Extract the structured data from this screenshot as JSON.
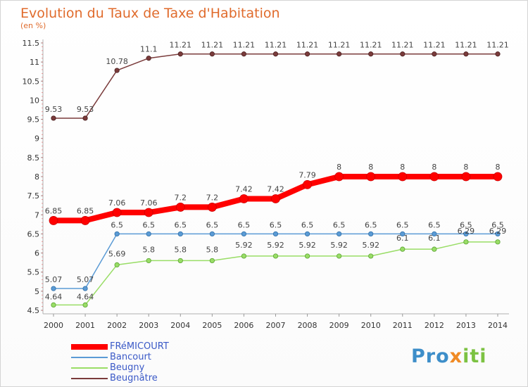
{
  "chart_data": {
    "type": "line",
    "title": "Evolution du Taux de Taxe d'Habitation",
    "subtitle": "(en %)",
    "xlabel": "",
    "ylabel": "",
    "ylim": [
      4.5,
      11.5
    ],
    "y_ticks": [
      4.5,
      5,
      5.5,
      6,
      6.5,
      7,
      7.5,
      8,
      8.5,
      9,
      9.5,
      10,
      10.5,
      11,
      11.5
    ],
    "categories": [
      "2000",
      "2001",
      "2002",
      "2003",
      "2004",
      "2005",
      "2006",
      "2007",
      "2008",
      "2009",
      "2010",
      "2011",
      "2012",
      "2013",
      "2014"
    ],
    "series": [
      {
        "name": "FRéMICOURT",
        "color": "#ff0000",
        "values": [
          6.85,
          6.85,
          7.06,
          7.06,
          7.2,
          7.2,
          7.42,
          7.42,
          7.79,
          8,
          8,
          8,
          8,
          8,
          8
        ],
        "labels": [
          "6.85",
          "6.85",
          "7.06",
          "7.06",
          "7.2",
          "7.2",
          "7.42",
          "7.42",
          "7.79",
          "8",
          "8",
          "8",
          "8",
          "8",
          "8"
        ]
      },
      {
        "name": "Bancourt",
        "color": "#5b9bd5",
        "values": [
          5.07,
          5.07,
          6.5,
          6.5,
          6.5,
          6.5,
          6.5,
          6.5,
          6.5,
          6.5,
          6.5,
          6.5,
          6.5,
          6.5,
          6.5
        ],
        "labels": [
          "5.07",
          "5.07",
          "6.5",
          "6.5",
          "6.5",
          "6.5",
          "6.5",
          "6.5",
          "6.5",
          "6.5",
          "6.5",
          "6.5",
          "6.5",
          "6.5",
          "6.5"
        ]
      },
      {
        "name": "Beugny",
        "color": "#99dd66",
        "values": [
          4.64,
          4.64,
          5.69,
          5.8,
          5.8,
          5.8,
          5.92,
          5.92,
          5.92,
          5.92,
          5.92,
          6.1,
          6.1,
          6.29,
          6.29
        ],
        "labels": [
          "4.64",
          "4.64",
          "5.69",
          "5.8",
          "5.8",
          "5.8",
          "5.92",
          "5.92",
          "5.92",
          "5.92",
          "5.92",
          "6.1",
          "6.1",
          "6.29",
          "6.29"
        ]
      },
      {
        "name": "Beugnâtre",
        "color": "#7a3b3b",
        "values": [
          9.53,
          9.53,
          10.78,
          11.1,
          11.21,
          11.21,
          11.21,
          11.21,
          11.21,
          11.21,
          11.21,
          11.21,
          11.21,
          11.21,
          11.21
        ],
        "labels": [
          "9.53",
          "9.53",
          "10.78",
          "11.1",
          "11.21",
          "11.21",
          "11.21",
          "11.21",
          "11.21",
          "11.21",
          "11.21",
          "11.21",
          "11.21",
          "11.21",
          "11.21"
        ]
      }
    ],
    "legend_position": "bottom-left",
    "grid": false
  },
  "logo": {
    "part1": "Pro",
    "part2": "x",
    "part3": "iti"
  }
}
